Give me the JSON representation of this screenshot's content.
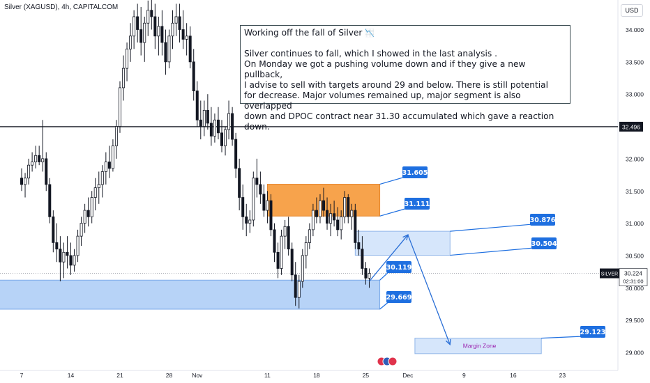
{
  "header": {
    "symbol_title": "Silver (XAGUSD), 4h, CAPITALCOM",
    "currency": "USD"
  },
  "note": {
    "title": "Working off the fall of Silver",
    "title_icon": "chart-decreasing-icon",
    "body": "Silver continues to fall, which I showed in the last analysis .\nOn Monday we got a pushing volume down and if they give a new pullback,\nI advise to sell with targets around 29 and below. There is still potential\nfor decrease. Major volumes remained up, major segment is also overlapped\ndown and DPOC contract near 31.30 accumulated which gave a reaction down."
  },
  "colors": {
    "up": "#131722",
    "down": "#131722",
    "orange_zone": "#f7a34c",
    "blue_zone": "#b7d3f7",
    "light_blue_zone": "#d6e6fb",
    "label_blue": "#1e6fe0",
    "line_blue": "#2a6fd6",
    "purple_text": "#9c27b0"
  },
  "chart_data": {
    "type": "candlestick",
    "symbol": "Silver (XAGUSD)",
    "timeframe": "4h",
    "y_axis": {
      "min": 28.8,
      "max": 34.35,
      "ticks": [
        29.0,
        29.5,
        30.0,
        30.5,
        31.0,
        31.5,
        32.0,
        32.5,
        33.0,
        33.5,
        34.0
      ],
      "tick_labels": [
        "29.000",
        "29.500",
        "30.000",
        "30.500",
        "31.000",
        "31.500",
        "32.000",
        "",
        "33.000",
        "33.500",
        "34.000"
      ],
      "position": "right"
    },
    "x_axis": {
      "labels": [
        "7",
        "14",
        "21",
        "28",
        "Nov",
        "11",
        "18",
        "25",
        "Dec",
        "9",
        "16",
        "23"
      ],
      "label_days": [
        0,
        7,
        14,
        21,
        25,
        35,
        42,
        49,
        55,
        63,
        70,
        77
      ]
    },
    "candles": [
      [
        0,
        31.7,
        31.85,
        31.5,
        31.6
      ],
      [
        0.5,
        31.6,
        31.78,
        31.4,
        31.7
      ],
      [
        1,
        31.7,
        32.0,
        31.6,
        31.9
      ],
      [
        1.5,
        31.9,
        32.1,
        31.8,
        31.95
      ],
      [
        2,
        31.95,
        32.2,
        31.85,
        32.05
      ],
      [
        2.5,
        32.05,
        32.2,
        31.9,
        31.95
      ],
      [
        3,
        31.95,
        32.6,
        31.8,
        32.0
      ],
      [
        3.5,
        32.0,
        32.1,
        31.5,
        31.6
      ],
      [
        4,
        31.6,
        31.7,
        31.0,
        31.1
      ],
      [
        4.5,
        31.1,
        31.2,
        30.55,
        30.7
      ],
      [
        5,
        30.7,
        31.0,
        30.4,
        30.6
      ],
      [
        5.5,
        30.6,
        30.8,
        30.1,
        30.4
      ],
      [
        6,
        30.4,
        30.7,
        30.15,
        30.55
      ],
      [
        6.5,
        30.55,
        30.8,
        30.3,
        30.5
      ],
      [
        7,
        30.5,
        30.7,
        30.2,
        30.35
      ],
      [
        7.5,
        30.35,
        30.6,
        30.25,
        30.5
      ],
      [
        8,
        30.5,
        30.9,
        30.4,
        30.8
      ],
      [
        8.5,
        30.8,
        31.1,
        30.65,
        31.0
      ],
      [
        9,
        31.0,
        31.3,
        30.85,
        31.2
      ],
      [
        9.5,
        31.2,
        31.4,
        30.95,
        31.1
      ],
      [
        10,
        31.1,
        31.5,
        31.0,
        31.4
      ],
      [
        10.5,
        31.4,
        31.7,
        31.2,
        31.55
      ],
      [
        11,
        31.55,
        31.8,
        31.3,
        31.6
      ],
      [
        11.5,
        31.6,
        31.9,
        31.4,
        31.8
      ],
      [
        12,
        31.8,
        32.1,
        31.6,
        31.95
      ],
      [
        12.5,
        31.95,
        32.2,
        31.7,
        31.85
      ],
      [
        13,
        31.85,
        32.3,
        31.8,
        32.2
      ],
      [
        13.5,
        32.2,
        32.6,
        32.0,
        32.5
      ],
      [
        14,
        32.5,
        33.2,
        32.4,
        33.1
      ],
      [
        14.5,
        33.1,
        33.6,
        32.9,
        33.4
      ],
      [
        15,
        33.4,
        33.8,
        33.2,
        33.7
      ],
      [
        15.5,
        33.7,
        34.1,
        33.5,
        33.9
      ],
      [
        16,
        33.9,
        34.3,
        33.7,
        34.2
      ],
      [
        16.5,
        34.2,
        34.4,
        33.8,
        34.0
      ],
      [
        17,
        34.0,
        34.35,
        33.6,
        33.8
      ],
      [
        17.5,
        33.8,
        34.2,
        33.5,
        34.1
      ],
      [
        18,
        34.1,
        34.45,
        33.9,
        34.3
      ],
      [
        18.5,
        34.3,
        34.5,
        34.0,
        34.2
      ],
      [
        19,
        34.2,
        34.4,
        33.7,
        33.9
      ],
      [
        19.5,
        33.9,
        34.2,
        33.6,
        34.05
      ],
      [
        20,
        34.05,
        34.3,
        33.6,
        33.8
      ],
      [
        20.5,
        33.8,
        34.0,
        33.3,
        33.5
      ],
      [
        21,
        33.5,
        34.0,
        33.4,
        33.9
      ],
      [
        21.5,
        33.9,
        34.3,
        33.7,
        34.1
      ],
      [
        22,
        34.1,
        34.4,
        33.9,
        34.2
      ],
      [
        22.5,
        34.2,
        34.4,
        33.8,
        34.0
      ],
      [
        23,
        34.0,
        34.3,
        33.7,
        33.85
      ],
      [
        23.5,
        33.85,
        34.1,
        33.6,
        33.9
      ],
      [
        24,
        33.9,
        34.05,
        33.4,
        33.5
      ],
      [
        24.5,
        33.5,
        33.7,
        32.9,
        33.05
      ],
      [
        25,
        33.05,
        33.2,
        32.5,
        32.6
      ],
      [
        25.5,
        32.6,
        32.9,
        32.3,
        32.5
      ],
      [
        26,
        32.5,
        32.9,
        32.35,
        32.75
      ],
      [
        26.5,
        32.75,
        33.0,
        32.45,
        32.55
      ],
      [
        27,
        32.55,
        32.8,
        32.2,
        32.35
      ],
      [
        27.5,
        32.35,
        32.7,
        32.25,
        32.6
      ],
      [
        28,
        32.6,
        32.8,
        32.3,
        32.4
      ],
      [
        28.5,
        32.4,
        32.6,
        32.1,
        32.2
      ],
      [
        29,
        32.2,
        32.5,
        32.05,
        32.45
      ],
      [
        29.5,
        32.45,
        32.9,
        32.3,
        32.7
      ],
      [
        30,
        32.7,
        32.8,
        32.2,
        32.3
      ],
      [
        30.5,
        32.3,
        32.4,
        31.7,
        31.85
      ],
      [
        31,
        31.85,
        32.0,
        31.2,
        31.4
      ],
      [
        31.5,
        31.4,
        31.6,
        30.9,
        31.1
      ],
      [
        32,
        31.1,
        31.3,
        30.8,
        31.0
      ],
      [
        32.5,
        31.0,
        31.2,
        30.85,
        31.05
      ],
      [
        33,
        31.05,
        31.8,
        30.95,
        31.7
      ],
      [
        33.5,
        31.7,
        32.0,
        31.4,
        31.6
      ],
      [
        34,
        31.6,
        31.8,
        31.3,
        31.45
      ],
      [
        34.5,
        31.45,
        31.6,
        31.1,
        31.2
      ],
      [
        35,
        31.2,
        31.5,
        31.0,
        31.35
      ],
      [
        35.5,
        31.35,
        31.45,
        30.8,
        30.9
      ],
      [
        36,
        30.9,
        31.0,
        30.4,
        30.55
      ],
      [
        36.5,
        30.55,
        30.7,
        30.15,
        30.3
      ],
      [
        37,
        30.3,
        30.9,
        30.2,
        30.8
      ],
      [
        37.5,
        30.8,
        31.05,
        30.6,
        30.95
      ],
      [
        38,
        30.95,
        31.1,
        30.5,
        30.6
      ],
      [
        38.5,
        30.6,
        30.7,
        30.1,
        30.2
      ],
      [
        39,
        30.2,
        30.4,
        29.72,
        29.85
      ],
      [
        39.5,
        29.85,
        30.2,
        29.68,
        30.1
      ],
      [
        40,
        30.1,
        30.6,
        30.0,
        30.5
      ],
      [
        40.5,
        30.5,
        30.8,
        30.3,
        30.7
      ],
      [
        41,
        30.7,
        31.0,
        30.6,
        30.9
      ],
      [
        41.5,
        30.9,
        31.3,
        30.8,
        31.2
      ],
      [
        42,
        31.2,
        31.4,
        31.0,
        31.1
      ],
      [
        42.5,
        31.1,
        31.45,
        31.0,
        31.35
      ],
      [
        43,
        31.35,
        31.55,
        31.1,
        31.2
      ],
      [
        43.5,
        31.2,
        31.4,
        30.9,
        31.0
      ],
      [
        44,
        31.0,
        31.3,
        30.8,
        31.15
      ],
      [
        44.5,
        31.15,
        31.35,
        30.95,
        31.05
      ],
      [
        45,
        31.05,
        31.25,
        30.8,
        30.9
      ],
      [
        45.5,
        30.9,
        31.2,
        30.75,
        31.1
      ],
      [
        46,
        31.1,
        31.5,
        31.0,
        31.4
      ],
      [
        46.5,
        31.4,
        31.45,
        31.0,
        31.1
      ],
      [
        47,
        31.1,
        31.3,
        30.9,
        31.2
      ],
      [
        47.5,
        31.2,
        31.3,
        30.6,
        30.7
      ],
      [
        48,
        30.7,
        30.9,
        30.5,
        30.6
      ],
      [
        48.5,
        30.6,
        30.8,
        30.2,
        30.3
      ],
      [
        49,
        30.3,
        30.4,
        30.05,
        30.15
      ],
      [
        49.5,
        30.15,
        30.3,
        30.0,
        30.224
      ]
    ],
    "horizontal_lines": [
      {
        "price": 32.496,
        "label": "32.496"
      }
    ],
    "last_price": {
      "price": 30.224,
      "symbol": "SILVER",
      "value_label": "30.224",
      "countdown": "02:31:00"
    },
    "zones": [
      {
        "name": "orange-zone",
        "color": "orange",
        "x_start": 35,
        "x_end": 51,
        "top": 31.605,
        "bottom": 31.111,
        "top_label": "31.605",
        "bottom_label": "31.111"
      },
      {
        "name": "support-zone",
        "color": "blue",
        "x_start": -4,
        "x_end": 51,
        "top": 30.119,
        "bottom": 29.669,
        "top_label": "30.119",
        "bottom_label": "29.669"
      },
      {
        "name": "resistance-zone",
        "color": "light-blue",
        "x_start": 47.5,
        "x_end": 61,
        "top": 30.876,
        "bottom": 30.504,
        "top_label": "30.876",
        "bottom_label": "30.504"
      },
      {
        "name": "margin-zone",
        "color": "light-blue",
        "x_start": 56,
        "x_end": 74,
        "top": 29.22,
        "bottom": 28.98,
        "text": "Margin Zone",
        "label": "29.123"
      }
    ],
    "projection": [
      [
        49.5,
        30.1
      ],
      [
        55,
        30.82
      ],
      [
        61,
        29.12
      ]
    ]
  }
}
